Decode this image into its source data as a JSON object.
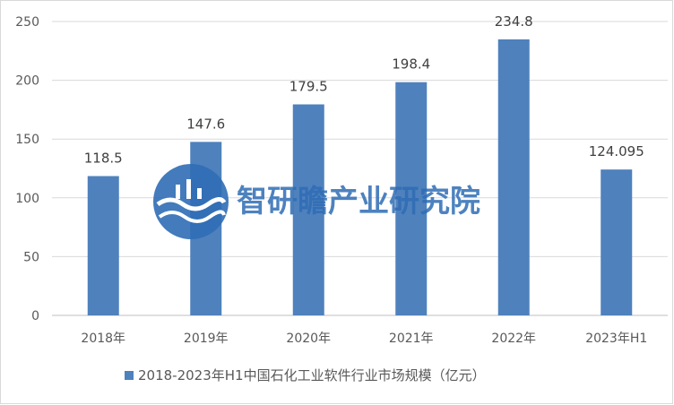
{
  "chart_data": {
    "type": "bar",
    "categories": [
      "2018年",
      "2019年",
      "2020年",
      "2021年",
      "2022年",
      "2023年H1"
    ],
    "series": [
      {
        "name": "2018-2023年H1中国石化工业软件行业市场规模（亿元）",
        "values": [
          118.5,
          147.6,
          179.5,
          198.4,
          234.8,
          124.095
        ],
        "labels": [
          "118.5",
          "147.6",
          "179.5",
          "198.4",
          "234.8",
          "124.095"
        ],
        "color": "#4f81bd"
      }
    ],
    "y_ticks": [
      0,
      50,
      100,
      150,
      200,
      250
    ],
    "ylim": [
      0,
      250
    ],
    "grid": true,
    "legend_position": "bottom"
  },
  "watermark": {
    "text": "智研瞻产业研究院",
    "color": "#2f6db5"
  }
}
